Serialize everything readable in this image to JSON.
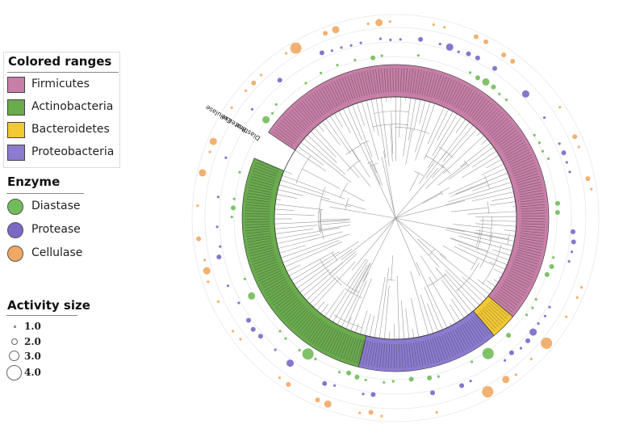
{
  "legend": {
    "colored_ranges": {
      "title": "Colored ranges",
      "items": [
        {
          "label": "Firmicutes",
          "color": "#c77fa7"
        },
        {
          "label": "Actinobacteria",
          "color": "#6aab4e"
        },
        {
          "label": "Bacteroidetes",
          "color": "#f2c833"
        },
        {
          "label": "Proteobacteria",
          "color": "#8c7bd0"
        }
      ]
    },
    "enzyme": {
      "title": "Enzyme",
      "items": [
        {
          "label": "Diastase",
          "color": "#72bb5a"
        },
        {
          "label": "Protease",
          "color": "#7a68c4"
        },
        {
          "label": "Cellulase",
          "color": "#f0a863"
        }
      ]
    },
    "activity_size": {
      "title": "Activity size",
      "items": [
        {
          "label": "1.0"
        },
        {
          "label": "2.0"
        },
        {
          "label": "3.0"
        },
        {
          "label": "4.0"
        }
      ]
    }
  },
  "ring_labels": {
    "diastase": "Diastase",
    "protease": "Protease",
    "cellulase": "Cellulase"
  },
  "colors": {
    "firmicutes": "#c77fa7",
    "actinobacteria": "#6aab4e",
    "bacteroidetes": "#f2c833",
    "proteobacteria": "#8c7bd0",
    "diastase": "#72bb5a",
    "protease": "#7a68c4",
    "cellulase": "#f0a863",
    "branch": "#9a9a9a"
  }
}
